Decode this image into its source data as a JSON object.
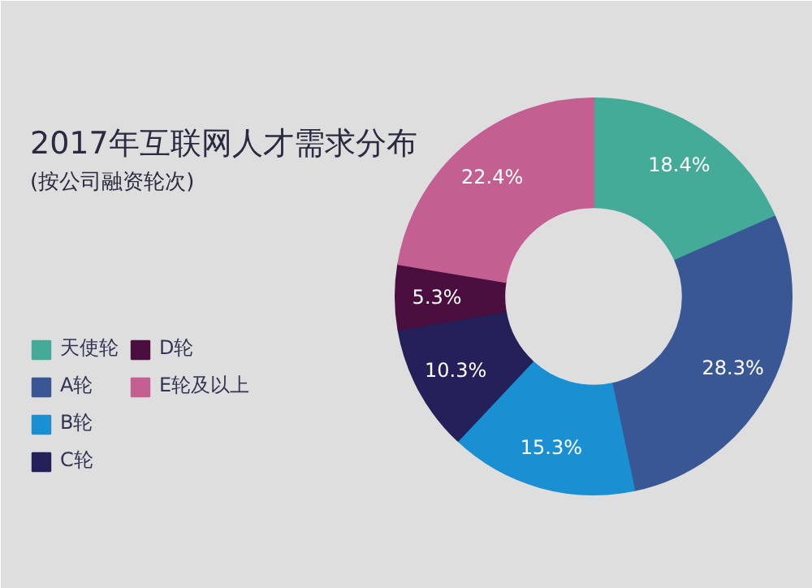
{
  "chart_data": {
    "type": "donut",
    "title": "2017年互联网人才需求分布",
    "subtitle": "(按公司融资轮次)",
    "categories": [
      "天使轮",
      "A轮",
      "B轮",
      "C轮",
      "D轮",
      "E轮及以上"
    ],
    "values": [
      18.4,
      28.3,
      15.3,
      10.3,
      5.3,
      22.4
    ],
    "value_labels": [
      "18.4%",
      "28.3%",
      "15.3%",
      "10.3%",
      "5.3%",
      "22.4%"
    ],
    "colors": [
      "#44ab98",
      "#3a5795",
      "#1a90d2",
      "#24205a",
      "#4a0f3e",
      "#c45f92"
    ],
    "legend": "left"
  }
}
